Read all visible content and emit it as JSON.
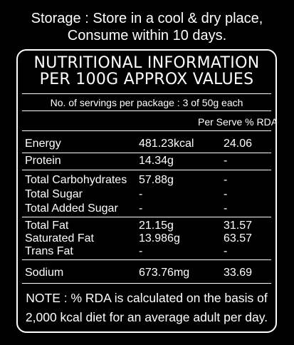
{
  "storage": {
    "line1": "Storage : Store in a cool & dry place,",
    "line2": "Consume within 10 days."
  },
  "panel": {
    "heading_line1": "NUTRITIONAL INFORMATION",
    "heading_line2": "PER 100G APPROX VALUES",
    "servings": "No. of servings per package : 3 of 50g each",
    "column_header": "Per Serve % RDA",
    "rows": [
      {
        "name": "Energy",
        "value": "481.23kcal",
        "rda": "24.06"
      },
      {
        "name": "Protein",
        "value": "14.34g",
        "rda": "-"
      },
      {
        "name": "Total Carbohydrates",
        "value": "57.88g",
        "rda": "-"
      },
      {
        "name": "Total Sugar",
        "value": "-",
        "rda": "-"
      },
      {
        "name": "Total Added Sugar",
        "value": "-",
        "rda": "-"
      },
      {
        "name": "Total Fat",
        "value": "21.15g",
        "rda": "31.57"
      },
      {
        "name": "Saturated Fat",
        "value": "13.986g",
        "rda": "63.57"
      },
      {
        "name": "Trans Fat",
        "value": "-",
        "rda": "-"
      },
      {
        "name": "Sodium",
        "value": "673.76mg",
        "rda": "33.69"
      }
    ],
    "note_line1": "NOTE : % RDA is calculated on the basis of",
    "note_line2": "2,000 kcal diet for an average adult per day."
  },
  "colors": {
    "background": "#000000",
    "text": "#ffffff",
    "border": "#ffffff"
  }
}
